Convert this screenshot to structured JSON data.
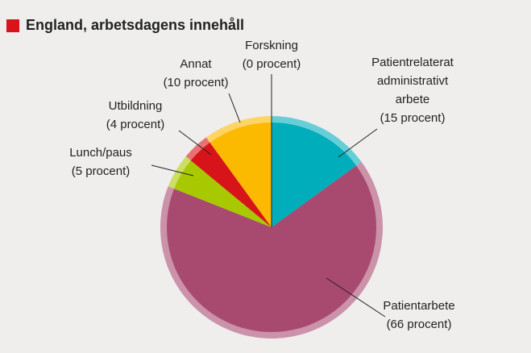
{
  "chart_data": {
    "type": "pie",
    "title": "England, arbetsdagens innehåll",
    "categories": [
      "Patientrelaterat administrativt arbete",
      "Patientarbete",
      "Lunch/paus",
      "Utbildning",
      "Annat",
      "Forskning"
    ],
    "values": [
      15,
      66,
      5,
      4,
      10,
      0
    ],
    "value_labels": [
      "(15 procent)",
      "(66 procent)",
      "(5 procent)",
      "(4 procent)",
      "(10 procent)",
      "(0 procent)"
    ],
    "colors": [
      "#00adbb",
      "#a84a70",
      "#a8c800",
      "#d7141a",
      "#fbb900",
      "#222222"
    ]
  }
}
